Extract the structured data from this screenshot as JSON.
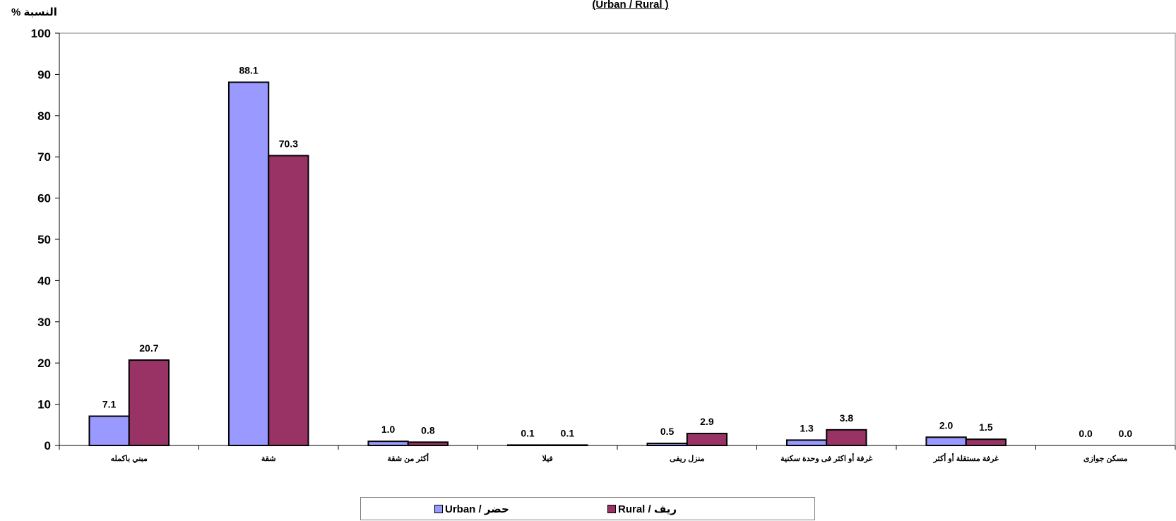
{
  "chart_data": {
    "type": "bar",
    "title": "(Urban / Rural )",
    "ylabel": "النسبة %",
    "ylim": [
      0,
      100
    ],
    "y_ticks": [
      0,
      10,
      20,
      30,
      40,
      50,
      60,
      70,
      80,
      90,
      100
    ],
    "grid": false,
    "legend_position": "bottom",
    "categories": [
      "مبني باكمله",
      "شقة",
      "أكثر من شقة",
      "فيلا",
      "منزل ريفى",
      "غرفة أو اكثر فى وحدة سكنية",
      "غرفة مستقلة أو أكثر",
      "مسكن جوازى"
    ],
    "series": [
      {
        "name": "Urban / حضر",
        "color": "#9999ff",
        "values": [
          7.1,
          88.1,
          1.0,
          0.1,
          0.5,
          1.3,
          2.0,
          0.0
        ],
        "labels": [
          "7.1",
          "88.1",
          "1.0",
          "0.1",
          "0.5",
          "1.3",
          "2.0",
          "0.0"
        ]
      },
      {
        "name": "Rural / ريف",
        "color": "#993366",
        "values": [
          20.7,
          70.3,
          0.8,
          0.1,
          2.9,
          3.8,
          1.5,
          0.0
        ],
        "labels": [
          "20.7",
          "70.3",
          "0.8",
          "0.1",
          "2.9",
          "3.8",
          "1.5",
          "0.0"
        ]
      }
    ]
  }
}
